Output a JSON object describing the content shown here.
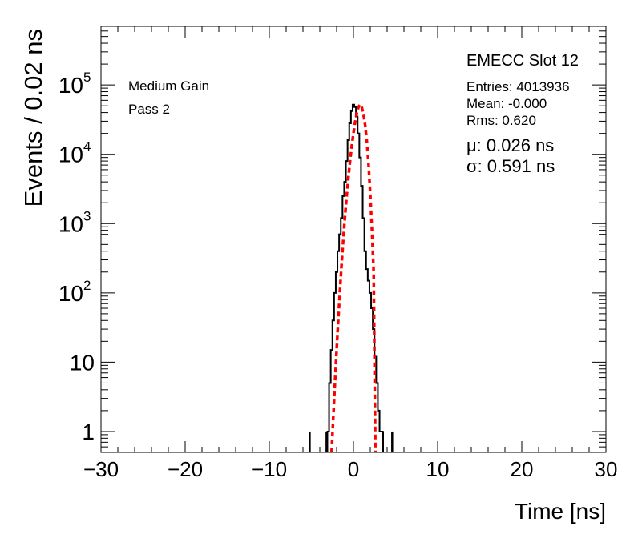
{
  "chart_data": {
    "type": "line",
    "title": "EMECC Slot 12",
    "xlabel": "Time [ns]",
    "ylabel": "Events / 0.02 ns",
    "xlim": [
      -30,
      30
    ],
    "ylim": [
      0.5,
      700000
    ],
    "yscale": "log",
    "grid": false,
    "x_ticks": [
      {
        "value": -30,
        "label": "−30"
      },
      {
        "value": -20,
        "label": "−20"
      },
      {
        "value": -10,
        "label": "−10"
      },
      {
        "value": 0,
        "label": "0"
      },
      {
        "value": 10,
        "label": "10"
      },
      {
        "value": 20,
        "label": "20"
      },
      {
        "value": 30,
        "label": "30"
      }
    ],
    "y_ticks": [
      {
        "value": 1,
        "label": "1",
        "exp": ""
      },
      {
        "value": 10,
        "label": "10",
        "exp": ""
      },
      {
        "value": 100,
        "label": "10",
        "exp": "2"
      },
      {
        "value": 1000,
        "label": "10",
        "exp": "3"
      },
      {
        "value": 10000,
        "label": "10",
        "exp": "4"
      },
      {
        "value": 100000,
        "label": "10",
        "exp": "5"
      }
    ],
    "annotations_left": [
      "Medium Gain",
      "Pass 2"
    ],
    "stats": [
      "Entries: 4013936",
      "Mean: -0.000",
      "Rms: 0.620"
    ],
    "fit_params": [
      "μ: 0.026 ns",
      "σ: 0.591 ns"
    ],
    "series": [
      {
        "kind": "histogram",
        "color": "#000000",
        "x": [
          -3.0,
          -2.8,
          -2.6,
          -2.4,
          -2.2,
          -2.0,
          -1.8,
          -1.6,
          -1.4,
          -1.2,
          -1.0,
          -0.8,
          -0.6,
          -0.4,
          -0.2,
          0.0,
          0.2,
          0.4,
          0.6,
          0.8,
          1.0,
          1.2,
          1.4,
          1.6,
          1.8,
          2.0,
          2.2,
          2.4,
          2.6,
          2.8,
          3.0,
          3.2,
          3.4
        ],
        "y": [
          1,
          5,
          15,
          40,
          100,
          200,
          400,
          700,
          1200,
          2500,
          4000,
          8000,
          16000,
          28000,
          42000,
          52000,
          48000,
          35000,
          20000,
          9000,
          3500,
          1200,
          400,
          220,
          150,
          100,
          60,
          30,
          12,
          5,
          2,
          1,
          1
        ]
      },
      {
        "kind": "fit",
        "color": "#ff0000",
        "x": [
          -2.6,
          -2.4,
          -2.2,
          -2.0,
          -1.8,
          -1.6,
          -1.4,
          -1.2,
          -1.0,
          -0.8,
          -0.6,
          -0.4,
          -0.2,
          0.0,
          0.2,
          0.4,
          0.6,
          0.8,
          1.0,
          1.2,
          1.4,
          1.6,
          1.8,
          2.0,
          2.2,
          2.4,
          2.6
        ],
        "y": [
          0.5,
          1.6,
          5,
          15,
          42,
          110,
          270,
          610,
          1290,
          2540,
          4680,
          8100,
          13200,
          20200,
          29000,
          39000,
          48000,
          52000,
          47000,
          37000,
          26000,
          15000,
          7000,
          2600,
          800,
          200,
          0.5
        ]
      }
    ],
    "outliers": [
      {
        "x": -5.2,
        "y": 1
      },
      {
        "x": -3.2,
        "y": 1
      },
      {
        "x": 3.5,
        "y": 1
      },
      {
        "x": 4.6,
        "y": 1
      }
    ]
  }
}
